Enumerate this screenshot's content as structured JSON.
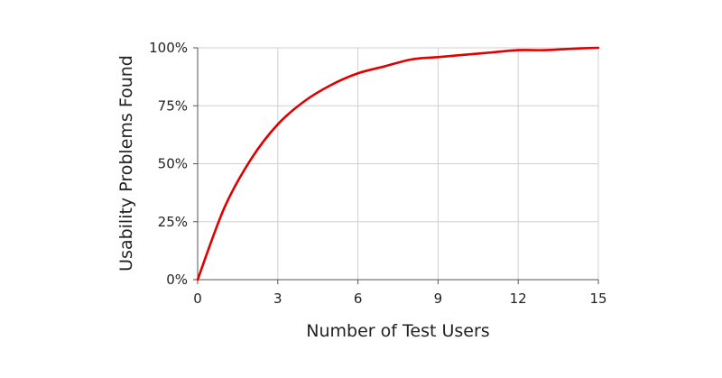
{
  "chart_data": {
    "type": "line",
    "title": "",
    "xlabel": "Number of Test Users",
    "ylabel": "Usability Problems Found",
    "xlim": [
      0,
      15
    ],
    "ylim": [
      0,
      100
    ],
    "x_ticks": [
      0,
      3,
      6,
      9,
      12,
      15
    ],
    "x_tick_labels": [
      "0",
      "3",
      "6",
      "9",
      "12",
      "15"
    ],
    "y_ticks": [
      0,
      25,
      50,
      75,
      100
    ],
    "y_tick_labels": [
      "0%",
      "25%",
      "50%",
      "75%",
      "100%"
    ],
    "grid": true,
    "legend": "none",
    "series": [
      {
        "color": "#e00000",
        "x": [
          0,
          1,
          2,
          3,
          4,
          5,
          6,
          7,
          8,
          9,
          10,
          11,
          12,
          13,
          14,
          15
        ],
        "y": [
          0,
          31,
          52,
          67,
          77,
          84,
          89,
          92,
          95,
          96,
          97,
          98,
          99,
          99,
          99.6,
          100
        ]
      }
    ]
  }
}
